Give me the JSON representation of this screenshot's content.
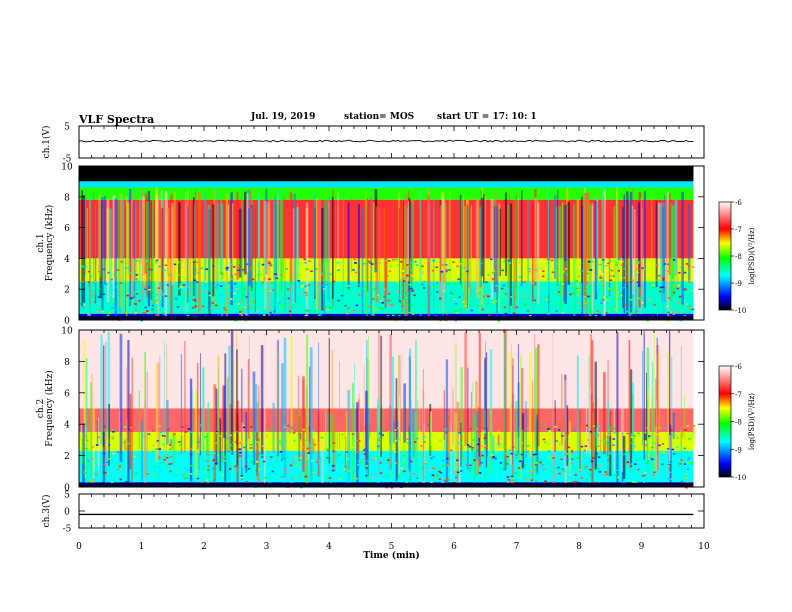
{
  "header": {
    "title": "VLF Spectra",
    "date": "Jul. 19, 2019",
    "station": "station= MOS",
    "start": "start UT =  17: 10: 1"
  },
  "chart_data": [
    {
      "type": "line",
      "panel": "ch1-waveform",
      "ylabel": "ch.1(V)",
      "ylim": [
        -5,
        5
      ],
      "yticks": [
        "5",
        "-5"
      ],
      "series": [
        {
          "x": [
            0,
            9.83
          ],
          "y": [
            0.3,
            0.3
          ]
        }
      ],
      "xlim": [
        0,
        10
      ]
    },
    {
      "type": "heatmap",
      "panel": "ch1-spectrogram",
      "ylabel": "ch.1\nFrequency (kHz)",
      "ylim": [
        0,
        10
      ],
      "yticks": [
        "0",
        "2",
        "4",
        "6",
        "8",
        "10"
      ],
      "xlim": [
        0,
        10
      ],
      "data_extent_min": 9.83,
      "colorbar": {
        "label": "log(PSD)(V²/Hz)",
        "range": [
          -10,
          -6
        ],
        "ticks": [
          "-6",
          "-7",
          "-8",
          "-9",
          "-10"
        ],
        "colormap": [
          "#000000",
          "#0000ff",
          "#00ffff",
          "#00ff00",
          "#ffff00",
          "#ff0000",
          "#ffffff"
        ]
      },
      "bands": [
        {
          "f_from": 9.0,
          "f_to": 10.0,
          "level": -10
        },
        {
          "f_from": 8.6,
          "f_to": 9.0,
          "level": -8.8
        },
        {
          "f_from": 7.8,
          "f_to": 8.6,
          "level": -8.0
        },
        {
          "f_from": 4.0,
          "f_to": 7.8,
          "level": -6.8
        },
        {
          "f_from": 2.5,
          "f_to": 4.0,
          "level": -7.6
        },
        {
          "f_from": 0.4,
          "f_to": 2.5,
          "level": -8.6
        },
        {
          "f_from": 0.0,
          "f_to": 0.4,
          "level": -9.6
        }
      ]
    },
    {
      "type": "heatmap",
      "panel": "ch2-spectrogram",
      "ylabel": "ch.2\nFrequency (kHz)",
      "ylim": [
        0,
        10
      ],
      "yticks": [
        "0",
        "2",
        "4",
        "6",
        "8",
        "10"
      ],
      "xlim": [
        0,
        10
      ],
      "data_extent_min": 9.83,
      "colorbar": {
        "label": "log(PSD)(V²/Hz)",
        "range": [
          -10,
          -6
        ],
        "ticks": [
          "-6",
          "-7",
          "-8",
          "-9",
          "-10"
        ],
        "colormap": [
          "#000000",
          "#0000ff",
          "#00ffff",
          "#00ff00",
          "#ffff00",
          "#ff0000",
          "#ffffff"
        ]
      },
      "bands": [
        {
          "f_from": 5.0,
          "f_to": 10.0,
          "level": -6.1
        },
        {
          "f_from": 3.5,
          "f_to": 5.0,
          "level": -6.6
        },
        {
          "f_from": 2.3,
          "f_to": 3.5,
          "level": -7.6
        },
        {
          "f_from": 0.3,
          "f_to": 2.3,
          "level": -8.7
        },
        {
          "f_from": 0.0,
          "f_to": 0.3,
          "level": -9.6
        }
      ]
    },
    {
      "type": "line",
      "panel": "ch3-waveform",
      "ylabel": "ch.3(V)",
      "ylim": [
        -5,
        5
      ],
      "yticks": [
        "5",
        "0",
        "-5"
      ],
      "series": [
        {
          "x": [
            0,
            9.83
          ],
          "y": [
            -1.0,
            -1.0
          ]
        }
      ],
      "xlim": [
        0,
        10
      ],
      "xlabel": "Time (min)",
      "xticks": [
        "0",
        "1",
        "2",
        "3",
        "4",
        "5",
        "6",
        "7",
        "8",
        "9",
        "10"
      ]
    }
  ]
}
